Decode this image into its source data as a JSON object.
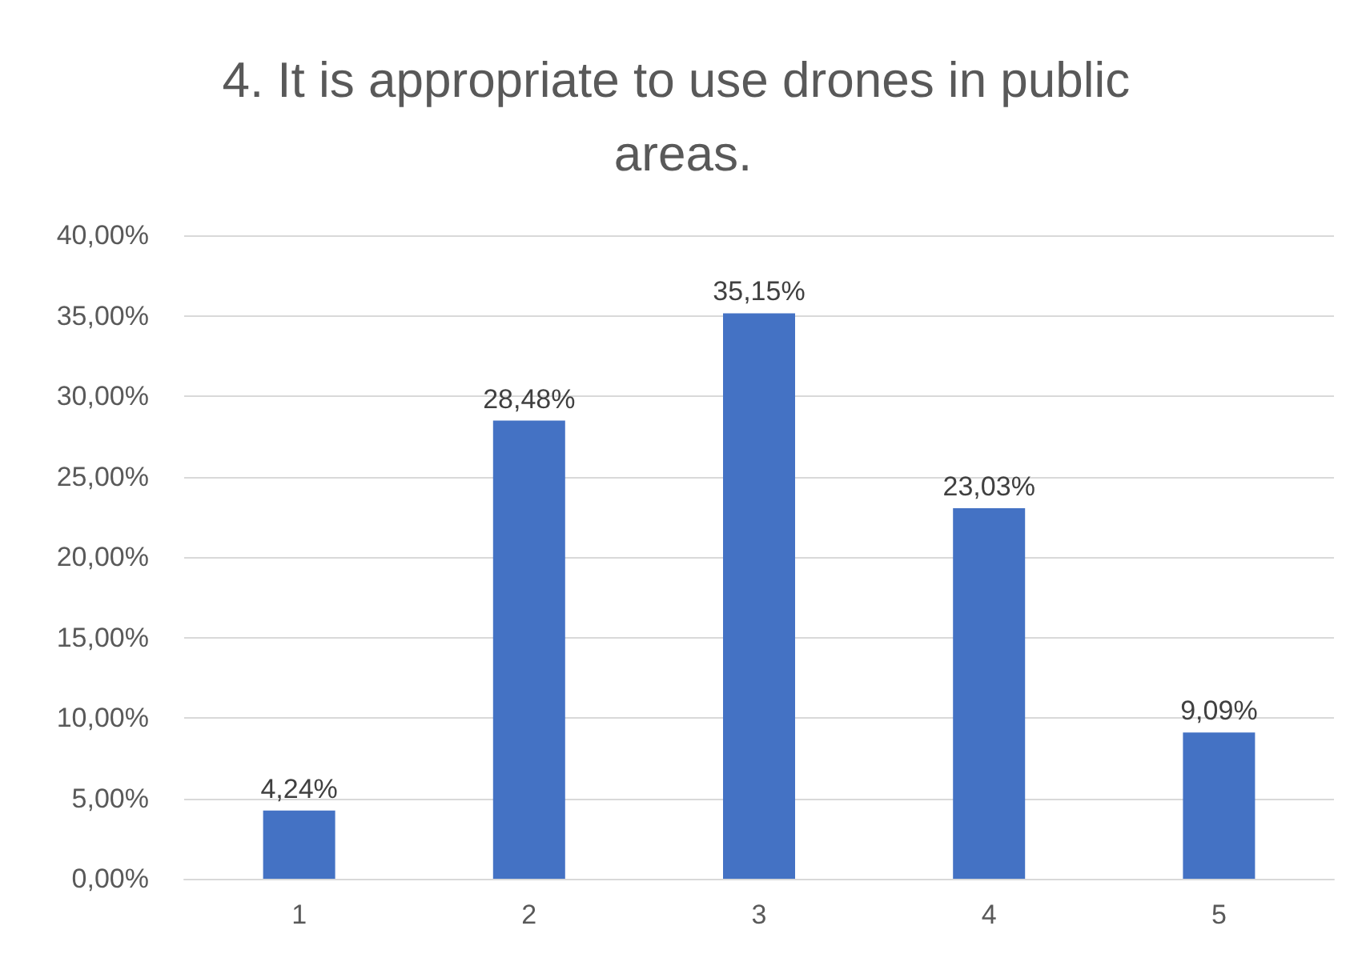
{
  "chart_data": {
    "type": "bar",
    "title": "4. It is appropriate to use drones in public areas.",
    "categories": [
      "1",
      "2",
      "3",
      "4",
      "5"
    ],
    "values": [
      4.24,
      28.48,
      35.15,
      23.03,
      9.09
    ],
    "value_labels": [
      "4,24%",
      "28,48%",
      "35,15%",
      "23,03%",
      "9,09%"
    ],
    "color": "#4472c4",
    "ylim": [
      0,
      40
    ],
    "yticks": [
      {
        "value": 0,
        "label": "0,00%"
      },
      {
        "value": 5,
        "label": "5,00%"
      },
      {
        "value": 10,
        "label": "10,00%"
      },
      {
        "value": 15,
        "label": "15,00%"
      },
      {
        "value": 20,
        "label": "20,00%"
      },
      {
        "value": 25,
        "label": "25,00%"
      },
      {
        "value": 30,
        "label": "30,00%"
      },
      {
        "value": 35,
        "label": "35,00%"
      },
      {
        "value": 40,
        "label": "40,00%"
      }
    ],
    "grid": "y"
  }
}
